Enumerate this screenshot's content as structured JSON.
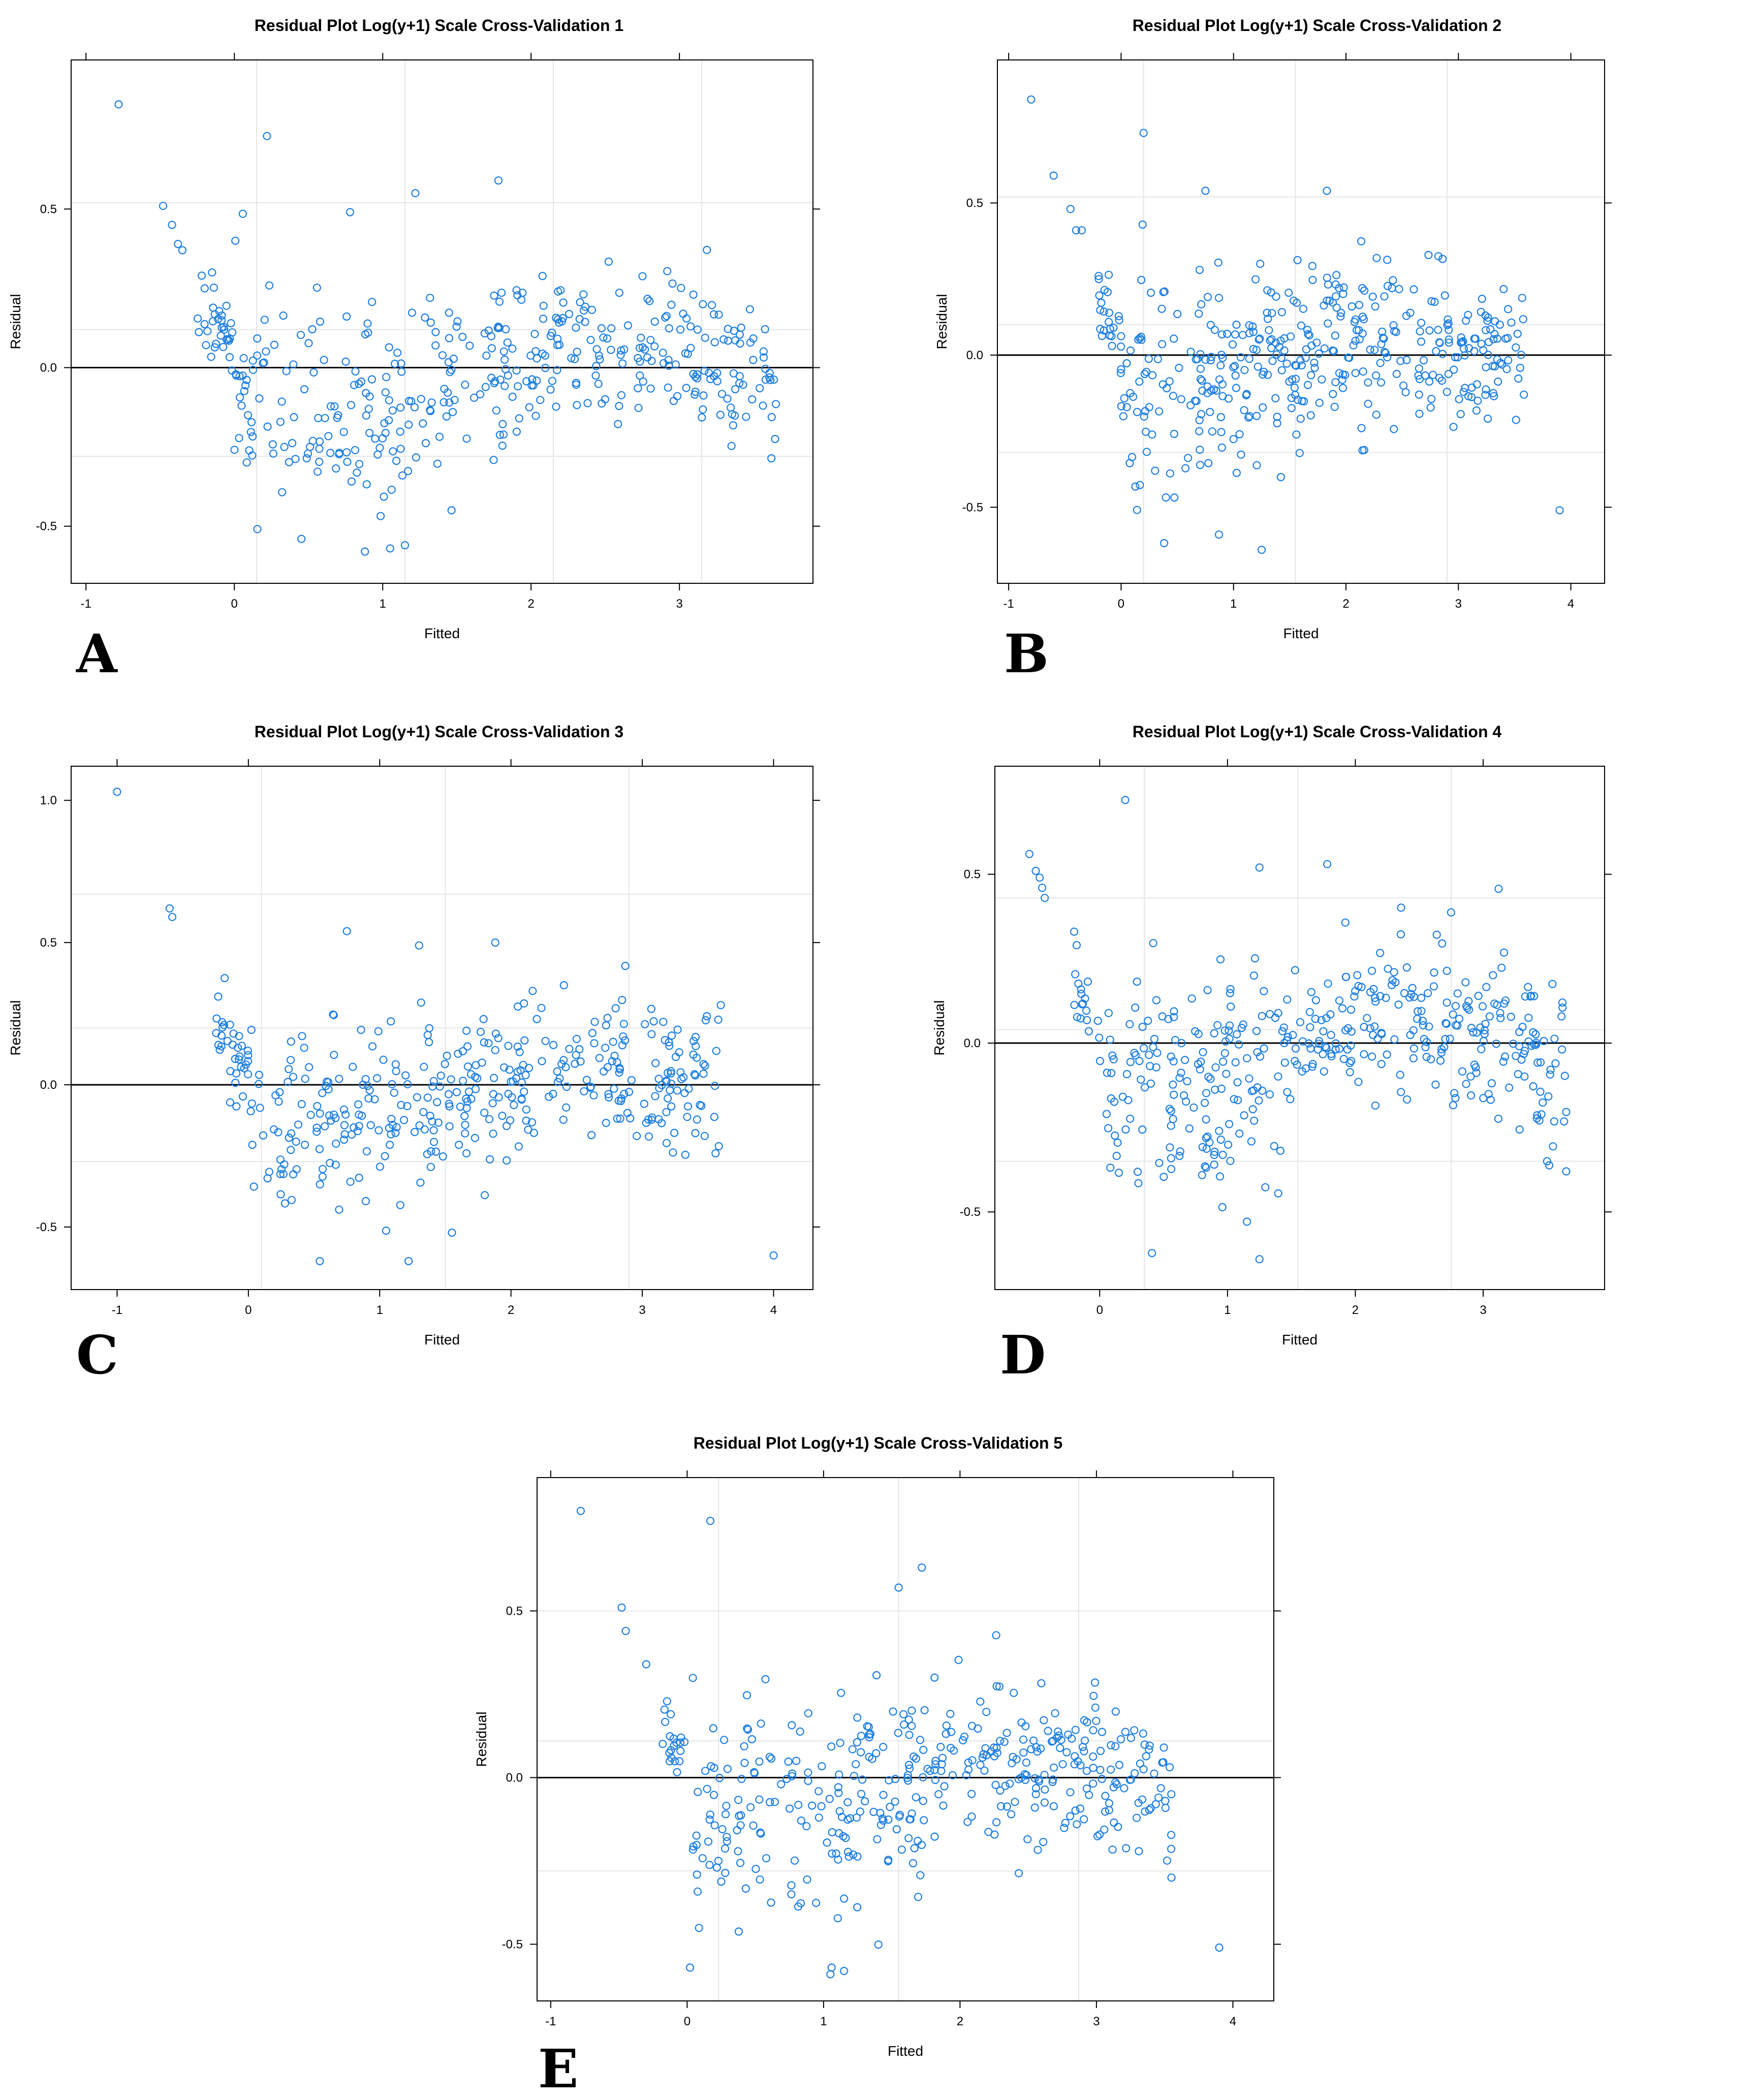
{
  "figure": {
    "point_color": "#1e7fe0",
    "grid_color": "#e6e6e6",
    "zero_line_color": "#000000"
  },
  "chart_data": [
    {
      "panel": "A",
      "type": "scatter",
      "title": "Residual Plot Log(y+1) Scale Cross-Validation 1",
      "xlabel": "Fitted",
      "ylabel": "Residual",
      "xlim": [
        -1.1,
        3.9
      ],
      "ylim": [
        -0.68,
        0.97
      ],
      "xticks": [
        -1,
        0,
        1,
        2,
        3
      ],
      "xtick_labels": [
        "-1",
        "0",
        "1",
        "2",
        "3"
      ],
      "yticks": [
        -0.5,
        0.0,
        0.5
      ],
      "ytick_labels": [
        "-0.5",
        "0.0",
        "0.5"
      ],
      "xgrid": [
        0.15,
        1.15,
        2.15,
        3.15
      ],
      "ygrid": [
        -0.28,
        0.12,
        0.52
      ],
      "hline": 0,
      "n_points": 420,
      "seed": 11,
      "x_range": [
        -0.25,
        3.65
      ],
      "outliers": {
        "x": [
          -0.78,
          0.22,
          -0.48,
          -0.42,
          -0.38,
          -0.35,
          -0.22,
          -0.2,
          -0.15,
          0.78,
          1.78,
          1.22,
          0.88,
          1.05,
          1.15
        ],
        "y": [
          0.83,
          0.73,
          0.51,
          0.45,
          0.39,
          0.37,
          0.29,
          0.25,
          0.3,
          0.49,
          0.59,
          0.55,
          -0.58,
          -0.57,
          -0.56
        ]
      }
    },
    {
      "panel": "B",
      "type": "scatter",
      "title": "Residual Plot Log(y+1) Scale Cross-Validation 2",
      "xlabel": "Fitted",
      "ylabel": "Residual",
      "xlim": [
        -1.1,
        4.3
      ],
      "ylim": [
        -0.75,
        0.97
      ],
      "xticks": [
        -1,
        0,
        1,
        2,
        3,
        4
      ],
      "xtick_labels": [
        "-1",
        "0",
        "1",
        "2",
        "3",
        "4"
      ],
      "yticks": [
        -0.5,
        0.0,
        0.5
      ],
      "ytick_labels": [
        "-0.5",
        "0.0",
        "0.5"
      ],
      "xgrid": [
        0.2,
        1.55,
        2.9
      ],
      "ygrid": [
        -0.32,
        0.1,
        0.52
      ],
      "hline": 0,
      "n_points": 420,
      "seed": 22,
      "x_range": [
        -0.2,
        3.6
      ],
      "outliers": {
        "x": [
          -0.8,
          0.2,
          -0.6,
          -0.45,
          -0.4,
          -0.35,
          -0.2,
          0.75,
          1.83,
          3.9,
          1.25,
          0.87
        ],
        "y": [
          0.84,
          0.73,
          0.59,
          0.48,
          0.41,
          0.41,
          0.26,
          0.54,
          0.54,
          -0.51,
          -0.64,
          -0.59
        ]
      }
    },
    {
      "panel": "C",
      "type": "scatter",
      "title": "Residual Plot Log(y+1) Scale Cross-Validation 3",
      "xlabel": "Fitted",
      "ylabel": "Residual",
      "xlim": [
        -1.35,
        4.3
      ],
      "ylim": [
        -0.72,
        1.12
      ],
      "xticks": [
        -1,
        0,
        1,
        2,
        3,
        4
      ],
      "xtick_labels": [
        "-1",
        "0",
        "1",
        "2",
        "3",
        "4"
      ],
      "yticks": [
        -0.5,
        0.0,
        0.5,
        1.0
      ],
      "ytick_labels": [
        "-0.5",
        "0.0",
        "0.5",
        "1.0"
      ],
      "xgrid": [
        0.1,
        1.5,
        2.9
      ],
      "ygrid": [
        -0.27,
        0.2,
        0.67
      ],
      "hline": 0,
      "n_points": 400,
      "seed": 33,
      "x_range": [
        -0.25,
        3.6
      ],
      "outliers": {
        "x": [
          -1.0,
          -0.6,
          -0.58,
          -0.23,
          -0.2,
          0.75,
          1.3,
          1.88,
          4.0,
          1.22,
          1.55
        ],
        "y": [
          1.03,
          0.62,
          0.59,
          0.31,
          0.22,
          0.54,
          0.49,
          0.5,
          -0.6,
          -0.62,
          -0.52
        ]
      }
    },
    {
      "panel": "D",
      "type": "scatter",
      "title": "Residual Plot Log(y+1) Scale Cross-Validation 4",
      "xlabel": "Fitted",
      "ylabel": "Residual",
      "xlim": [
        -0.82,
        3.95
      ],
      "ylim": [
        -0.73,
        0.82
      ],
      "xticks": [
        0,
        1,
        2,
        3
      ],
      "xtick_labels": [
        "0",
        "1",
        "2",
        "3"
      ],
      "yticks": [
        -0.5,
        0.0,
        0.5
      ],
      "ytick_labels": [
        "-0.5",
        "0.0",
        "0.5"
      ],
      "xgrid": [
        0.35,
        1.55,
        2.75
      ],
      "ygrid": [
        -0.35,
        0.04,
        0.43
      ],
      "hline": 0,
      "n_points": 420,
      "seed": 44,
      "x_range": [
        -0.2,
        3.65
      ],
      "outliers": {
        "x": [
          -0.55,
          0.2,
          -0.5,
          -0.47,
          -0.45,
          -0.43,
          -0.2,
          -0.18,
          1.25,
          1.78,
          1.25,
          3.65,
          3.5
        ],
        "y": [
          0.56,
          0.72,
          0.51,
          0.49,
          0.46,
          0.43,
          0.33,
          0.29,
          0.52,
          0.53,
          -0.64,
          -0.38,
          -0.35
        ]
      }
    },
    {
      "panel": "E",
      "type": "scatter",
      "title": "Residual Plot Log(y+1) Scale Cross-Validation 5",
      "xlabel": "Fitted",
      "ylabel": "Residual",
      "xlim": [
        -1.1,
        4.3
      ],
      "ylim": [
        -0.67,
        0.9
      ],
      "xticks": [
        -1,
        0,
        1,
        2,
        3,
        4
      ],
      "xtick_labels": [
        "-1",
        "0",
        "1",
        "2",
        "3",
        "4"
      ],
      "yticks": [
        -0.5,
        0.0,
        0.5
      ],
      "ytick_labels": [
        "-0.5",
        "0.0",
        "0.5"
      ],
      "xgrid": [
        0.23,
        1.55,
        2.87
      ],
      "ygrid": [
        -0.28,
        0.11,
        0.5
      ],
      "hline": 0,
      "n_points": 420,
      "seed": 55,
      "x_range": [
        -0.2,
        3.55
      ],
      "outliers": {
        "x": [
          -0.78,
          0.17,
          -0.48,
          -0.45,
          -0.3,
          1.72,
          1.55,
          3.9,
          3.55,
          1.05,
          1.15
        ],
        "y": [
          0.8,
          0.77,
          0.51,
          0.44,
          0.34,
          0.63,
          0.57,
          -0.51,
          -0.3,
          -0.59,
          -0.58
        ]
      }
    }
  ]
}
